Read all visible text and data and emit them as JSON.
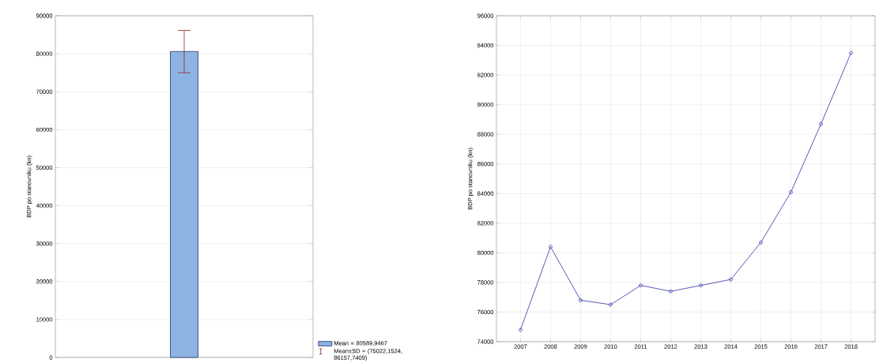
{
  "chart_data": [
    {
      "type": "bar",
      "categories": [
        null
      ],
      "ylabel": "BDP po stanovniku (kn)",
      "series": [
        {
          "name": "Mean = 80589,9467",
          "color": "#8db3e2",
          "values": [
            80589.9467
          ],
          "errors": [
            [
              75022.1524,
              86157.7409
            ]
          ]
        }
      ],
      "annotations": [
        "Mean±SD = (75022,1524, 86157,7409)"
      ],
      "ylim": [
        0,
        90000
      ],
      "yticks": [
        0,
        10000,
        20000,
        30000,
        40000,
        50000,
        60000,
        70000,
        80000,
        90000
      ],
      "grid": "y",
      "legend": "bottom right"
    },
    {
      "type": "line",
      "categories": [
        "2007",
        "2008",
        "2009",
        "2010",
        "2011",
        "2012",
        "2013",
        "2014",
        "2015",
        "2016",
        "2017",
        "2018"
      ],
      "ylabel": "BDP po stanovniku (kn)",
      "series": [
        {
          "color": "#4646b4",
          "values": [
            74800,
            80400,
            76800,
            76500,
            77800,
            77400,
            77800,
            78200,
            80700,
            84100,
            88700,
            93500
          ]
        }
      ],
      "ylim": [
        74000,
        96000
      ],
      "yticks": [
        74000,
        76000,
        78000,
        80000,
        82000,
        84000,
        86000,
        88000,
        90000,
        92000,
        94000,
        96000
      ],
      "grid": true,
      "marker": "circle"
    }
  ]
}
